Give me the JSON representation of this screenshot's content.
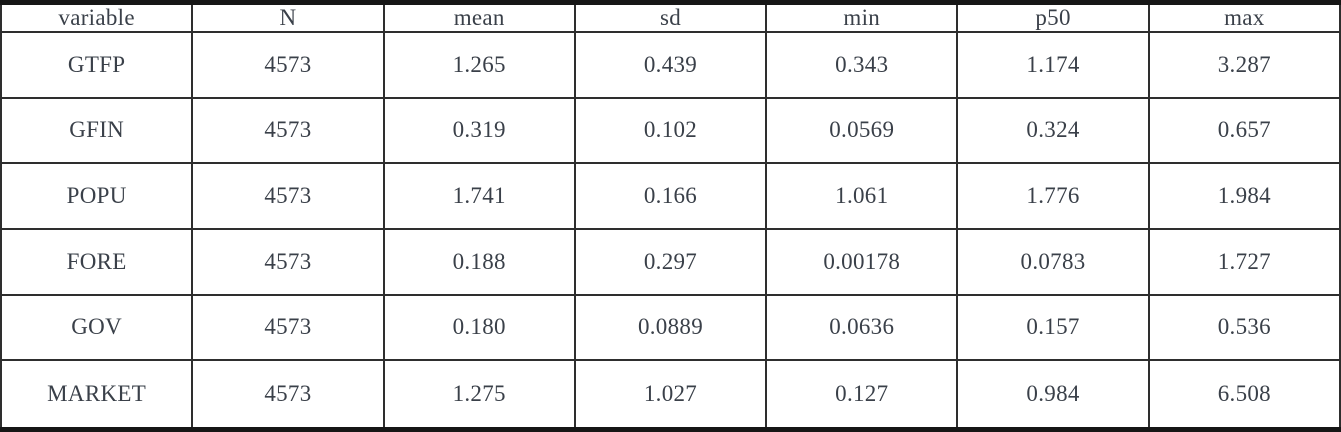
{
  "table": {
    "headers": [
      "variable",
      "N",
      "mean",
      "sd",
      "min",
      "p50",
      "max"
    ],
    "rows": [
      [
        "GTFP",
        "4573",
        "1.265",
        "0.439",
        "0.343",
        "1.174",
        "3.287"
      ],
      [
        "GFIN",
        "4573",
        "0.319",
        "0.102",
        "0.0569",
        "0.324",
        "0.657"
      ],
      [
        "POPU",
        "4573",
        "1.741",
        "0.166",
        "1.061",
        "1.776",
        "1.984"
      ],
      [
        "FORE",
        "4573",
        "0.188",
        "0.297",
        "0.00178",
        "0.0783",
        "1.727"
      ],
      [
        "GOV",
        "4573",
        "0.180",
        "0.0889",
        "0.0636",
        "0.157",
        "0.536"
      ],
      [
        "MARKET",
        "4573",
        "1.275",
        "1.027",
        "0.127",
        "0.984",
        "6.508"
      ]
    ]
  },
  "colors": {
    "text": "#3a4049",
    "inner_border": "#2e2e2e",
    "outer_border": "#161616",
    "background": "#ffffff"
  }
}
